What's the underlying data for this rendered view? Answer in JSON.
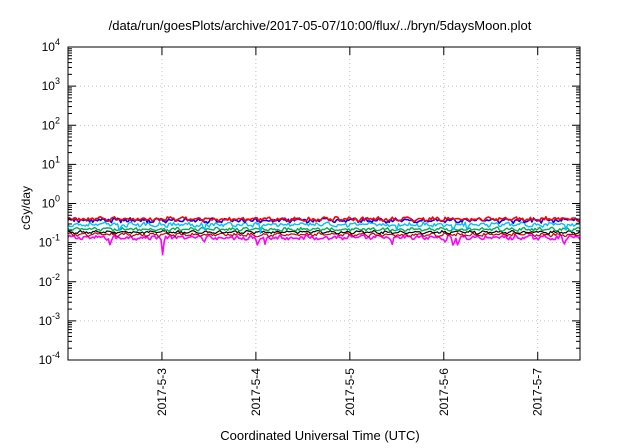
{
  "chart_data": {
    "type": "line",
    "title": "/data/run/goesPlots/archive/2017-05-07/10:00/flux/../bryn/5daysMoon.plot",
    "xlabel": "Coordinated Universal Time (UTC)",
    "ylabel": "cGy/day",
    "yscale": "log",
    "ylim": [
      0.0001,
      10000
    ],
    "y_ticks": [
      {
        "value": 0.0001,
        "base": "10",
        "exp": "-4"
      },
      {
        "value": 0.001,
        "base": "10",
        "exp": "-3"
      },
      {
        "value": 0.01,
        "base": "10",
        "exp": "-2"
      },
      {
        "value": 0.1,
        "base": "10",
        "exp": "-1"
      },
      {
        "value": 1,
        "base": "10",
        "exp": "0"
      },
      {
        "value": 10,
        "base": "10",
        "exp": "1"
      },
      {
        "value": 100,
        "base": "10",
        "exp": "2"
      },
      {
        "value": 1000,
        "base": "10",
        "exp": "3"
      },
      {
        "value": 10000,
        "base": "10",
        "exp": "4"
      }
    ],
    "xlim_days": [
      2.0,
      7.45
    ],
    "x_ticks": [
      {
        "label": "2017-5-3",
        "day": 3
      },
      {
        "label": "2017-5-4",
        "day": 4
      },
      {
        "label": "2017-5-5",
        "day": 5
      },
      {
        "label": "2017-5-6",
        "day": 6
      },
      {
        "label": "2017-5-7",
        "day": 7
      }
    ],
    "grid": true,
    "series": [
      {
        "color": "#ff0000",
        "baseline": 0.4,
        "noise": 0.07,
        "dips": [],
        "width": 1.6
      },
      {
        "color": "#0000ff",
        "baseline": 0.37,
        "noise": 0.07,
        "dips": [],
        "width": 1.6
      },
      {
        "color": "#00bfff",
        "baseline": 0.29,
        "noise": 0.05,
        "dips": [
          [
            2.55,
            0.18
          ],
          [
            3.45,
            0.2
          ],
          [
            4.05,
            0.16
          ],
          [
            5.5,
            0.2
          ],
          [
            6.1,
            0.18
          ],
          [
            6.25,
            0.2
          ],
          [
            7.3,
            0.2
          ]
        ],
        "width": 1.4
      },
      {
        "color": "#00b050",
        "baseline": 0.22,
        "noise": 0.03,
        "dips": [],
        "width": 1.4
      },
      {
        "color": "#000000",
        "baseline": 0.185,
        "noise": 0.02,
        "dips": [],
        "width": 1.2
      },
      {
        "color": "#cc0000",
        "baseline": 0.16,
        "noise": 0.02,
        "dips": [],
        "width": 1.2
      },
      {
        "color": "#ff00ff",
        "baseline": 0.135,
        "noise": 0.025,
        "dips": [
          [
            2.45,
            0.075
          ],
          [
            3.01,
            0.038
          ],
          [
            3.45,
            0.1
          ],
          [
            4.02,
            0.075
          ],
          [
            4.1,
            0.085
          ],
          [
            5.45,
            0.085
          ],
          [
            6.02,
            0.095
          ],
          [
            6.1,
            0.075
          ],
          [
            6.15,
            0.075
          ],
          [
            7.28,
            0.085
          ]
        ],
        "width": 1.6
      }
    ]
  }
}
